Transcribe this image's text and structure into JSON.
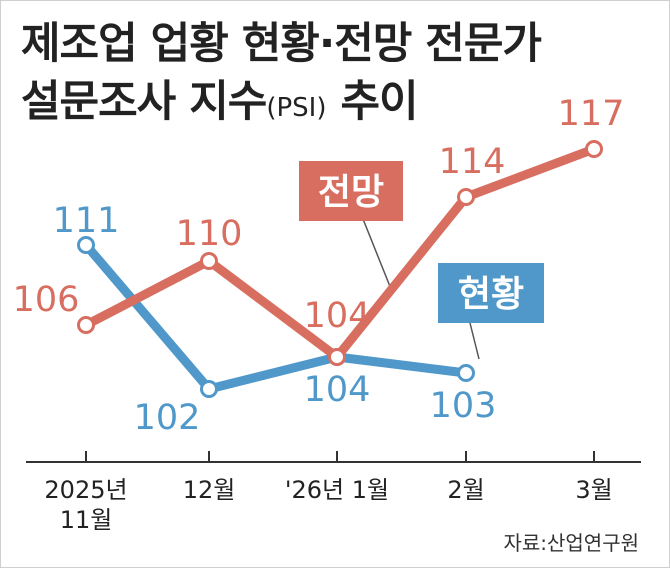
{
  "title": {
    "line1": "제조업 업황 현황·전망 전문가",
    "line2_main": "설문조사 지수",
    "line2_paren": "(PSI)",
    "line2_tail": " 추이"
  },
  "source": "자료:산업연구원",
  "chart_data": {
    "type": "line",
    "categories": [
      "2025년\n11월",
      "12월",
      "'26년 1월",
      "2월",
      "3월"
    ],
    "series": [
      {
        "name": "현황",
        "color": "#4f98c9",
        "values": [
          111,
          102,
          104,
          103,
          null
        ]
      },
      {
        "name": "전망",
        "color": "#d86e5f",
        "values": [
          106,
          110,
          104,
          114,
          117
        ]
      }
    ],
    "ylim": [
      98,
      120
    ],
    "grid": false,
    "legend": "inline labels"
  }
}
